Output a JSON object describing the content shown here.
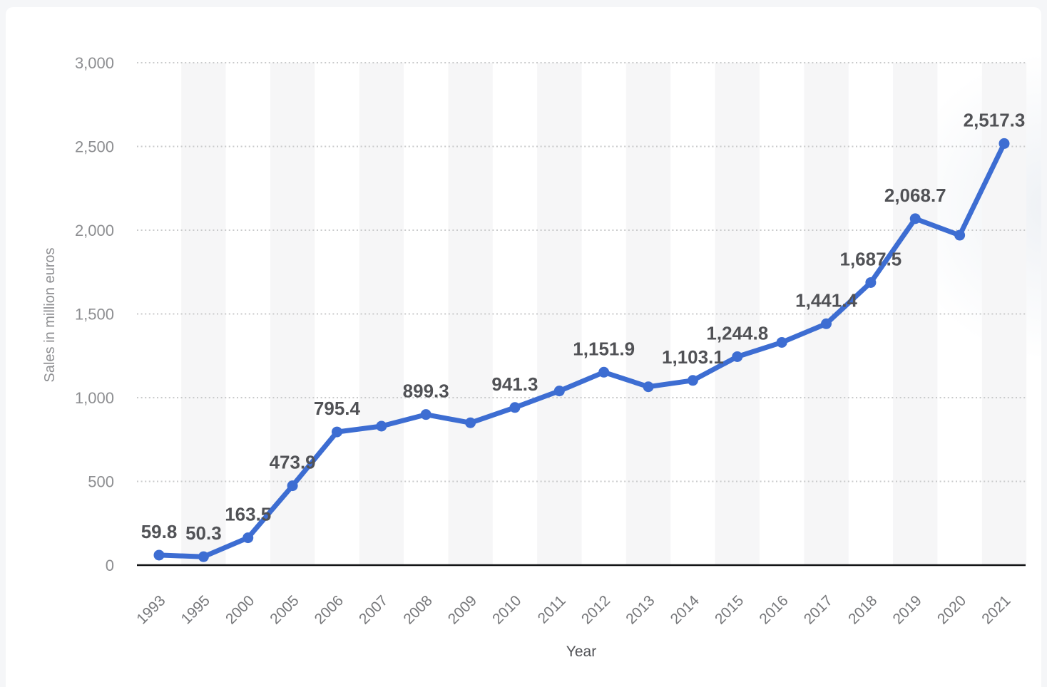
{
  "page": {
    "background": "#f5f6f8",
    "card_background": "#ffffff",
    "corner_glow_color": "#eef1f5"
  },
  "chart_data": {
    "type": "line",
    "title": "",
    "xlabel": "Year",
    "ylabel": "Sales in million euros",
    "categories": [
      "1993",
      "1995",
      "2000",
      "2005",
      "2006",
      "2007",
      "2008",
      "2009",
      "2010",
      "2011",
      "2012",
      "2013",
      "2014",
      "2015",
      "2016",
      "2017",
      "2018",
      "2019",
      "2020",
      "2021"
    ],
    "values": [
      59.8,
      50.3,
      163.5,
      473.9,
      795.4,
      830,
      899.3,
      850,
      941.3,
      1040,
      1151.9,
      1065,
      1103.1,
      1244.8,
      1330,
      1441.4,
      1687.5,
      2068.7,
      1970,
      2517.3
    ],
    "point_labels": [
      "59.8",
      "50.3",
      "163.5",
      "473.9",
      "795.4",
      null,
      "899.3",
      null,
      "941.3",
      null,
      "1,151.9",
      null,
      "1,103.1",
      "1,244.8",
      null,
      "1,441.4",
      "1,687.5",
      "2,068.7",
      null,
      "2,517.3"
    ],
    "point_label_dx": {
      "19": -14
    },
    "ylim": [
      0,
      3000
    ],
    "yticks": [
      0,
      500,
      1000,
      1500,
      2000,
      2500,
      3000
    ],
    "ytick_labels": [
      "0",
      "500",
      "1,000",
      "1,500",
      "2,000",
      "2,500",
      "3,000"
    ],
    "grid": "horizontal-dotted",
    "legend": "none",
    "line_color": "#3d6dd2",
    "marker_color": "#3d6dd2",
    "point_label_color": "#515256",
    "ytick_color": "#8d8e91",
    "xtick_color": "#76777a",
    "axis_title_color": "#8d8e91",
    "xaxis_title_color": "#515256",
    "grid_color": "#c9cacb",
    "axis_line_color": "#111214",
    "stripe_color": "#f6f6f7"
  }
}
